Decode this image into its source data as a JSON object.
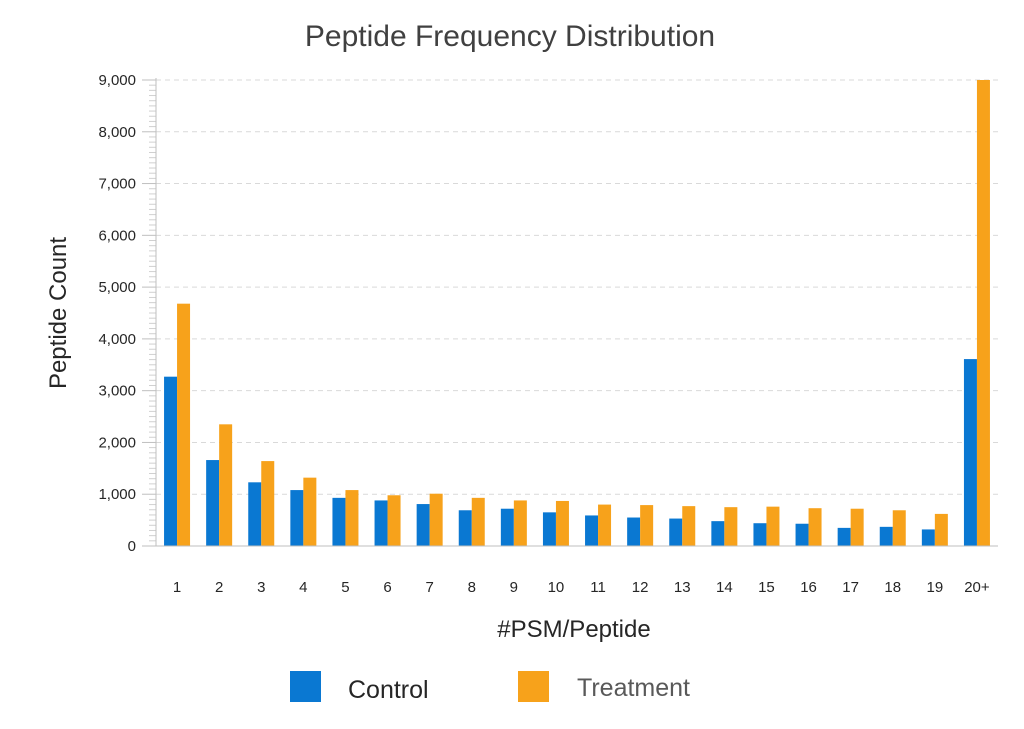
{
  "chart_data": {
    "type": "bar",
    "title": "Peptide Frequency Distribution",
    "xlabel": "#PSM/Peptide",
    "ylabel": "Peptide Count",
    "ylim": [
      0,
      9000
    ],
    "yticks": [
      "0",
      "1,000",
      "2,000",
      "3,000",
      "4,000",
      "5,000",
      "6,000",
      "7,000",
      "8,000",
      "9,000"
    ],
    "ytick_values": [
      0,
      1000,
      2000,
      3000,
      4000,
      5000,
      6000,
      7000,
      8000,
      9000
    ],
    "grid": true,
    "legend_position": "bottom",
    "categories": [
      "1",
      "2",
      "3",
      "4",
      "5",
      "6",
      "7",
      "8",
      "9",
      "10",
      "11",
      "12",
      "13",
      "14",
      "15",
      "16",
      "17",
      "18",
      "19",
      "20+"
    ],
    "series": [
      {
        "name": "Control",
        "color": "#0A78D2",
        "values": [
          3270,
          1660,
          1230,
          1080,
          930,
          880,
          810,
          690,
          720,
          650,
          590,
          550,
          530,
          480,
          440,
          430,
          350,
          370,
          320,
          3610
        ]
      },
      {
        "name": "Treatment",
        "color": "#F7A21B",
        "values": [
          4680,
          2350,
          1640,
          1320,
          1080,
          980,
          1010,
          930,
          880,
          870,
          800,
          790,
          770,
          750,
          760,
          730,
          720,
          690,
          620,
          9050
        ]
      }
    ]
  }
}
